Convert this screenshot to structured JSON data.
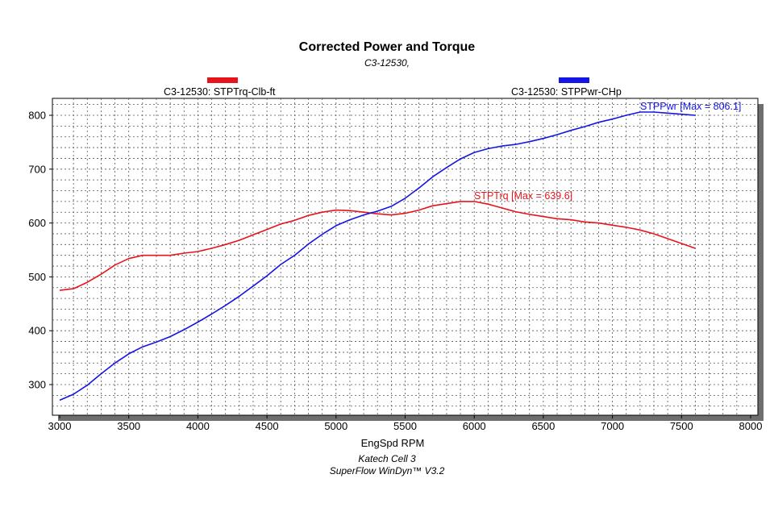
{
  "chart_data": {
    "type": "line",
    "title": "Corrected Power and Torque",
    "subtitle": "C3-12530,",
    "xlabel": "EngSpd RPM",
    "ylabel": "",
    "xlim": [
      3000,
      8000
    ],
    "ylim": [
      250,
      830
    ],
    "xticks": [
      3000,
      3500,
      4000,
      4500,
      5000,
      5500,
      6000,
      6500,
      7000,
      7500,
      8000
    ],
    "yticks": [
      300,
      400,
      500,
      600,
      700,
      800
    ],
    "grid": true,
    "legend_position": "top",
    "series": [
      {
        "name": "C3-12530: STPTrq-Clb-ft",
        "color": "#e8141c",
        "annotation": "STPTrq [Max = 639.6]",
        "x": [
          3000,
          3100,
          3200,
          3300,
          3400,
          3500,
          3600,
          3700,
          3800,
          3900,
          4000,
          4100,
          4200,
          4300,
          4400,
          4500,
          4600,
          4700,
          4800,
          4900,
          5000,
          5100,
          5200,
          5300,
          5400,
          5500,
          5600,
          5700,
          5800,
          5900,
          6000,
          6100,
          6200,
          6300,
          6400,
          6500,
          6600,
          6700,
          6800,
          6900,
          7000,
          7100,
          7200,
          7300,
          7400,
          7500,
          7600
        ],
        "y": [
          475,
          478,
          490,
          505,
          522,
          534,
          540,
          540,
          540,
          544,
          547,
          553,
          560,
          568,
          578,
          588,
          598,
          605,
          614,
          620,
          624,
          623,
          620,
          617,
          615,
          618,
          624,
          632,
          636,
          640,
          640,
          635,
          628,
          621,
          616,
          612,
          608,
          606,
          602,
          600,
          596,
          592,
          587,
          580,
          571,
          562,
          553
        ]
      },
      {
        "name": "C3-12530: STPPwr-CHp",
        "color": "#1515e6",
        "annotation": "STPPwr [Max = 806.1]",
        "x": [
          3000,
          3100,
          3200,
          3300,
          3400,
          3500,
          3600,
          3700,
          3800,
          3900,
          4000,
          4100,
          4200,
          4300,
          4400,
          4500,
          4600,
          4700,
          4800,
          4900,
          5000,
          5100,
          5200,
          5300,
          5400,
          5500,
          5600,
          5700,
          5800,
          5900,
          6000,
          6100,
          6200,
          6300,
          6400,
          6500,
          6600,
          6700,
          6800,
          6900,
          7000,
          7100,
          7200,
          7300,
          7400,
          7500,
          7600
        ],
        "y": [
          271,
          282,
          299,
          320,
          340,
          357,
          370,
          379,
          389,
          402,
          416,
          431,
          447,
          464,
          483,
          502,
          523,
          540,
          561,
          579,
          595,
          606,
          615,
          622,
          631,
          646,
          665,
          686,
          703,
          719,
          731,
          738,
          743,
          746,
          751,
          757,
          764,
          772,
          779,
          787,
          793,
          800,
          806,
          806,
          804,
          802,
          800
        ]
      }
    ]
  },
  "footer": {
    "line1": "Katech Cell 3",
    "line2": "SuperFlow WinDyn™ V3.2"
  }
}
